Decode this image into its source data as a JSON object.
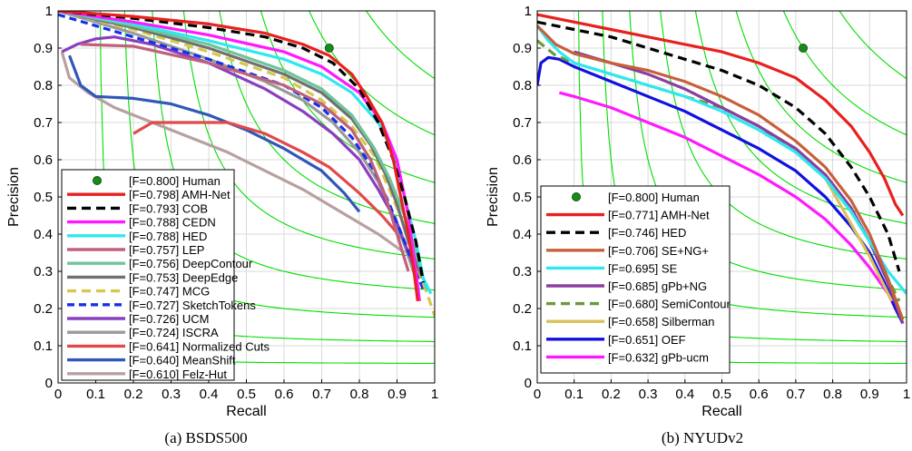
{
  "chart_data": [
    {
      "type": "line",
      "caption": "(a)  BSDS500",
      "xlabel": "Recall",
      "ylabel": "Precision",
      "xlim": [
        0,
        1
      ],
      "ylim": [
        0,
        1
      ],
      "xticks": [
        "0",
        "0.1",
        "0.2",
        "0.3",
        "0.4",
        "0.5",
        "0.6",
        "0.7",
        "0.8",
        "0.9",
        "1"
      ],
      "yticks": [
        "0",
        "0.1",
        "0.2",
        "0.3",
        "0.4",
        "0.5",
        "0.6",
        "0.7",
        "0.8",
        "0.9",
        "1"
      ],
      "grid": true,
      "iso_f_contours": [
        0.1,
        0.2,
        0.3,
        0.4,
        0.5,
        0.6,
        0.7,
        0.8,
        0.9
      ],
      "iso_f_color": "#00dd00",
      "legend_position": "bottom-left",
      "human_point": {
        "label": "[F=0.800] Human",
        "x": 0.72,
        "y": 0.9,
        "color": "#1a8a1a"
      },
      "series": [
        {
          "name": "[F=0.798] AMH-Net",
          "color": "#e8201e",
          "dash": "",
          "x": [
            0,
            0.2,
            0.4,
            0.55,
            0.65,
            0.72,
            0.78,
            0.82,
            0.86,
            0.89,
            0.91,
            0.93,
            0.945,
            0.955
          ],
          "y": [
            1,
            0.985,
            0.965,
            0.94,
            0.91,
            0.88,
            0.83,
            0.77,
            0.7,
            0.6,
            0.5,
            0.4,
            0.3,
            0.22
          ]
        },
        {
          "name": "[F=0.793] COB",
          "color": "#000000",
          "dash": "10,6",
          "x": [
            0,
            0.2,
            0.4,
            0.55,
            0.65,
            0.73,
            0.8,
            0.85,
            0.89,
            0.92,
            0.95,
            0.97
          ],
          "y": [
            1,
            0.98,
            0.955,
            0.93,
            0.9,
            0.86,
            0.79,
            0.7,
            0.6,
            0.5,
            0.38,
            0.27
          ]
        },
        {
          "name": "[F=0.788] CEDN",
          "color": "#ff19ff",
          "dash": "",
          "x": [
            0,
            0.2,
            0.4,
            0.6,
            0.7,
            0.8,
            0.86,
            0.9,
            0.93,
            0.95,
            0.96
          ],
          "y": [
            1,
            0.97,
            0.935,
            0.89,
            0.85,
            0.78,
            0.7,
            0.6,
            0.45,
            0.3,
            0.22
          ]
        },
        {
          "name": "[F=0.788] HED",
          "color": "#2ee8f0",
          "dash": "",
          "x": [
            0,
            0.2,
            0.4,
            0.6,
            0.7,
            0.78,
            0.85,
            0.89,
            0.92,
            0.95,
            0.97,
            0.99
          ],
          "y": [
            1,
            0.965,
            0.92,
            0.87,
            0.83,
            0.78,
            0.7,
            0.62,
            0.5,
            0.38,
            0.28,
            0.24
          ]
        },
        {
          "name": "[F=0.757] LEP",
          "color": "#c0607a",
          "dash": "",
          "x": [
            0.06,
            0.2,
            0.4,
            0.6,
            0.7,
            0.78,
            0.83,
            0.87,
            0.9,
            0.93
          ],
          "y": [
            0.91,
            0.905,
            0.86,
            0.8,
            0.75,
            0.68,
            0.6,
            0.5,
            0.4,
            0.3
          ]
        },
        {
          "name": "[F=0.756] DeepContour",
          "color": "#6fc49a",
          "dash": "",
          "x": [
            0,
            0.2,
            0.4,
            0.6,
            0.7,
            0.78,
            0.84,
            0.88,
            0.92,
            0.95,
            0.97,
            0.98
          ],
          "y": [
            1,
            0.96,
            0.91,
            0.84,
            0.79,
            0.72,
            0.63,
            0.55,
            0.45,
            0.35,
            0.28,
            0.25
          ]
        },
        {
          "name": "[F=0.753] DeepEdge",
          "color": "#707070",
          "dash": "",
          "x": [
            0,
            0.2,
            0.4,
            0.6,
            0.7,
            0.78,
            0.83,
            0.87,
            0.9,
            0.93,
            0.96,
            0.98
          ],
          "y": [
            1,
            0.955,
            0.9,
            0.83,
            0.78,
            0.71,
            0.64,
            0.56,
            0.48,
            0.38,
            0.3,
            0.26
          ]
        },
        {
          "name": "[F=0.747] MCG",
          "color": "#d6c84a",
          "dash": "10,6",
          "x": [
            0,
            0.2,
            0.4,
            0.6,
            0.7,
            0.78,
            0.84,
            0.88,
            0.92,
            0.95,
            0.98,
            1.0
          ],
          "y": [
            1,
            0.95,
            0.89,
            0.82,
            0.76,
            0.69,
            0.61,
            0.52,
            0.42,
            0.32,
            0.24,
            0.18
          ]
        },
        {
          "name": "[F=0.727] SketchTokens",
          "color": "#1530e8",
          "dash": "8,5",
          "x": [
            0,
            0.1,
            0.2,
            0.4,
            0.6,
            0.7,
            0.78,
            0.84,
            0.88,
            0.92,
            0.95,
            0.97
          ],
          "y": [
            0.99,
            0.96,
            0.93,
            0.87,
            0.8,
            0.74,
            0.66,
            0.57,
            0.48,
            0.38,
            0.3,
            0.25
          ]
        },
        {
          "name": "[F=0.726] UCM",
          "color": "#8a3ec0",
          "dash": "",
          "x": [
            0.01,
            0.05,
            0.1,
            0.15,
            0.25,
            0.4,
            0.55,
            0.65,
            0.73,
            0.8,
            0.85,
            0.9,
            0.93,
            0.96
          ],
          "y": [
            0.89,
            0.91,
            0.925,
            0.93,
            0.91,
            0.86,
            0.79,
            0.73,
            0.67,
            0.6,
            0.52,
            0.43,
            0.35,
            0.28
          ]
        },
        {
          "name": "[F=0.724] ISCRA",
          "color": "#9a9a9a",
          "dash": "",
          "x": [
            0,
            0.2,
            0.4,
            0.55,
            0.65,
            0.73,
            0.8,
            0.85,
            0.89,
            0.92,
            0.95
          ],
          "y": [
            1,
            0.94,
            0.87,
            0.81,
            0.76,
            0.7,
            0.62,
            0.54,
            0.45,
            0.37,
            0.28
          ]
        },
        {
          "name": "[F=0.641] Normalized Cuts",
          "color": "#e04a4a",
          "dash": "",
          "x": [
            0.2,
            0.25,
            0.35,
            0.45,
            0.55,
            0.65,
            0.72,
            0.8,
            0.86,
            0.92
          ],
          "y": [
            0.67,
            0.7,
            0.7,
            0.7,
            0.67,
            0.62,
            0.58,
            0.51,
            0.45,
            0.38
          ]
        },
        {
          "name": "[F=0.640] MeanShift",
          "color": "#3058b8",
          "dash": "",
          "x": [
            0.03,
            0.06,
            0.1,
            0.2,
            0.3,
            0.4,
            0.5,
            0.6,
            0.7,
            0.76,
            0.8
          ],
          "y": [
            0.88,
            0.8,
            0.77,
            0.765,
            0.75,
            0.72,
            0.68,
            0.63,
            0.57,
            0.51,
            0.46
          ]
        },
        {
          "name": "[F=0.610] Felz-Hut",
          "color": "#b8a0a0",
          "dash": "",
          "x": [
            0.01,
            0.03,
            0.08,
            0.15,
            0.25,
            0.35,
            0.45,
            0.55,
            0.65,
            0.75,
            0.85,
            0.92
          ],
          "y": [
            0.89,
            0.82,
            0.78,
            0.74,
            0.7,
            0.66,
            0.62,
            0.57,
            0.52,
            0.46,
            0.4,
            0.35
          ]
        }
      ]
    },
    {
      "type": "line",
      "caption": "(b)  NYUDv2",
      "xlabel": "Recall",
      "ylabel": "Precision",
      "xlim": [
        0,
        1
      ],
      "ylim": [
        0,
        1
      ],
      "xticks": [
        "0",
        "0.1",
        "0.2",
        "0.3",
        "0.4",
        "0.5",
        "0.6",
        "0.7",
        "0.8",
        "0.9",
        "1"
      ],
      "yticks": [
        "0",
        "0.1",
        "0.2",
        "0.3",
        "0.4",
        "0.5",
        "0.6",
        "0.7",
        "0.8",
        "0.9",
        "1"
      ],
      "grid": true,
      "iso_f_contours": [
        0.1,
        0.2,
        0.3,
        0.4,
        0.5,
        0.6,
        0.7,
        0.8,
        0.9
      ],
      "iso_f_color": "#00dd00",
      "legend_position": "bottom-left",
      "human_point": {
        "label": "[F=0.800] Human",
        "x": 0.72,
        "y": 0.9,
        "color": "#1a8a1a"
      },
      "series": [
        {
          "name": "[F=0.771] AMH-Net",
          "color": "#e8201e",
          "dash": "",
          "x": [
            0,
            0.1,
            0.2,
            0.3,
            0.4,
            0.5,
            0.6,
            0.7,
            0.78,
            0.85,
            0.9,
            0.94,
            0.97,
            0.99
          ],
          "y": [
            0.99,
            0.97,
            0.95,
            0.93,
            0.91,
            0.89,
            0.86,
            0.82,
            0.76,
            0.69,
            0.62,
            0.55,
            0.48,
            0.45
          ]
        },
        {
          "name": "[F=0.746] HED",
          "color": "#000000",
          "dash": "10,6",
          "x": [
            0,
            0.1,
            0.2,
            0.3,
            0.4,
            0.5,
            0.6,
            0.7,
            0.78,
            0.85,
            0.9,
            0.95,
            0.98
          ],
          "y": [
            0.97,
            0.95,
            0.93,
            0.9,
            0.87,
            0.84,
            0.8,
            0.74,
            0.67,
            0.58,
            0.5,
            0.4,
            0.3
          ]
        },
        {
          "name": "[F=0.706] SE+NG+",
          "color": "#c7603a",
          "dash": "",
          "x": [
            0,
            0.05,
            0.1,
            0.2,
            0.3,
            0.4,
            0.5,
            0.6,
            0.7,
            0.78,
            0.85,
            0.9,
            0.95,
            0.99
          ],
          "y": [
            0.96,
            0.91,
            0.885,
            0.86,
            0.84,
            0.81,
            0.77,
            0.72,
            0.65,
            0.58,
            0.49,
            0.4,
            0.28,
            0.17
          ]
        },
        {
          "name": "[F=0.695] SE",
          "color": "#2ee8f0",
          "dash": "",
          "x": [
            0,
            0.03,
            0.06,
            0.1,
            0.2,
            0.3,
            0.4,
            0.5,
            0.6,
            0.7,
            0.78,
            0.85,
            0.9,
            0.95,
            1.0
          ],
          "y": [
            0.96,
            0.92,
            0.89,
            0.86,
            0.83,
            0.8,
            0.77,
            0.73,
            0.68,
            0.62,
            0.55,
            0.46,
            0.38,
            0.3,
            0.24
          ]
        },
        {
          "name": "[F=0.685] gPb+NG",
          "color": "#8a3ea0",
          "dash": "",
          "x": [
            0.1,
            0.2,
            0.3,
            0.4,
            0.5,
            0.6,
            0.7,
            0.78,
            0.85,
            0.9,
            0.95,
            0.99
          ],
          "y": [
            0.89,
            0.86,
            0.83,
            0.79,
            0.74,
            0.69,
            0.63,
            0.56,
            0.47,
            0.38,
            0.27,
            0.16
          ]
        },
        {
          "name": "[F=0.680] SemiContour",
          "color": "#6a9a3a",
          "dash": "10,6",
          "x": [
            0,
            0.05,
            0.1,
            0.2,
            0.3,
            0.4,
            0.5,
            0.6,
            0.7,
            0.78,
            0.85,
            0.9,
            0.95,
            0.98
          ],
          "y": [
            0.92,
            0.88,
            0.86,
            0.83,
            0.8,
            0.77,
            0.74,
            0.69,
            0.62,
            0.55,
            0.46,
            0.38,
            0.28,
            0.22
          ]
        },
        {
          "name": "[F=0.658] Silberman",
          "color": "#d9c25a",
          "dash": "",
          "x": [
            0.78,
            0.82,
            0.86,
            0.9,
            0.93,
            0.96
          ],
          "y": [
            0.55,
            0.48,
            0.41,
            0.34,
            0.28,
            0.22
          ]
        },
        {
          "name": "[F=0.651] OEF",
          "color": "#1010e0",
          "dash": "",
          "x": [
            0.0,
            0.01,
            0.03,
            0.06,
            0.1,
            0.2,
            0.3,
            0.4,
            0.5,
            0.6,
            0.7,
            0.78,
            0.85,
            0.9,
            0.94,
            0.97,
            0.99
          ],
          "y": [
            0.8,
            0.86,
            0.875,
            0.87,
            0.85,
            0.81,
            0.77,
            0.73,
            0.68,
            0.63,
            0.57,
            0.5,
            0.42,
            0.35,
            0.27,
            0.2,
            0.16
          ]
        },
        {
          "name": "[F=0.632] gPb-ucm",
          "color": "#ff19ff",
          "dash": "",
          "x": [
            0.06,
            0.1,
            0.2,
            0.3,
            0.4,
            0.5,
            0.6,
            0.7,
            0.78,
            0.85,
            0.9,
            0.95,
            0.98
          ],
          "y": [
            0.78,
            0.77,
            0.74,
            0.7,
            0.66,
            0.61,
            0.56,
            0.5,
            0.44,
            0.37,
            0.31,
            0.24,
            0.18
          ]
        }
      ]
    }
  ]
}
